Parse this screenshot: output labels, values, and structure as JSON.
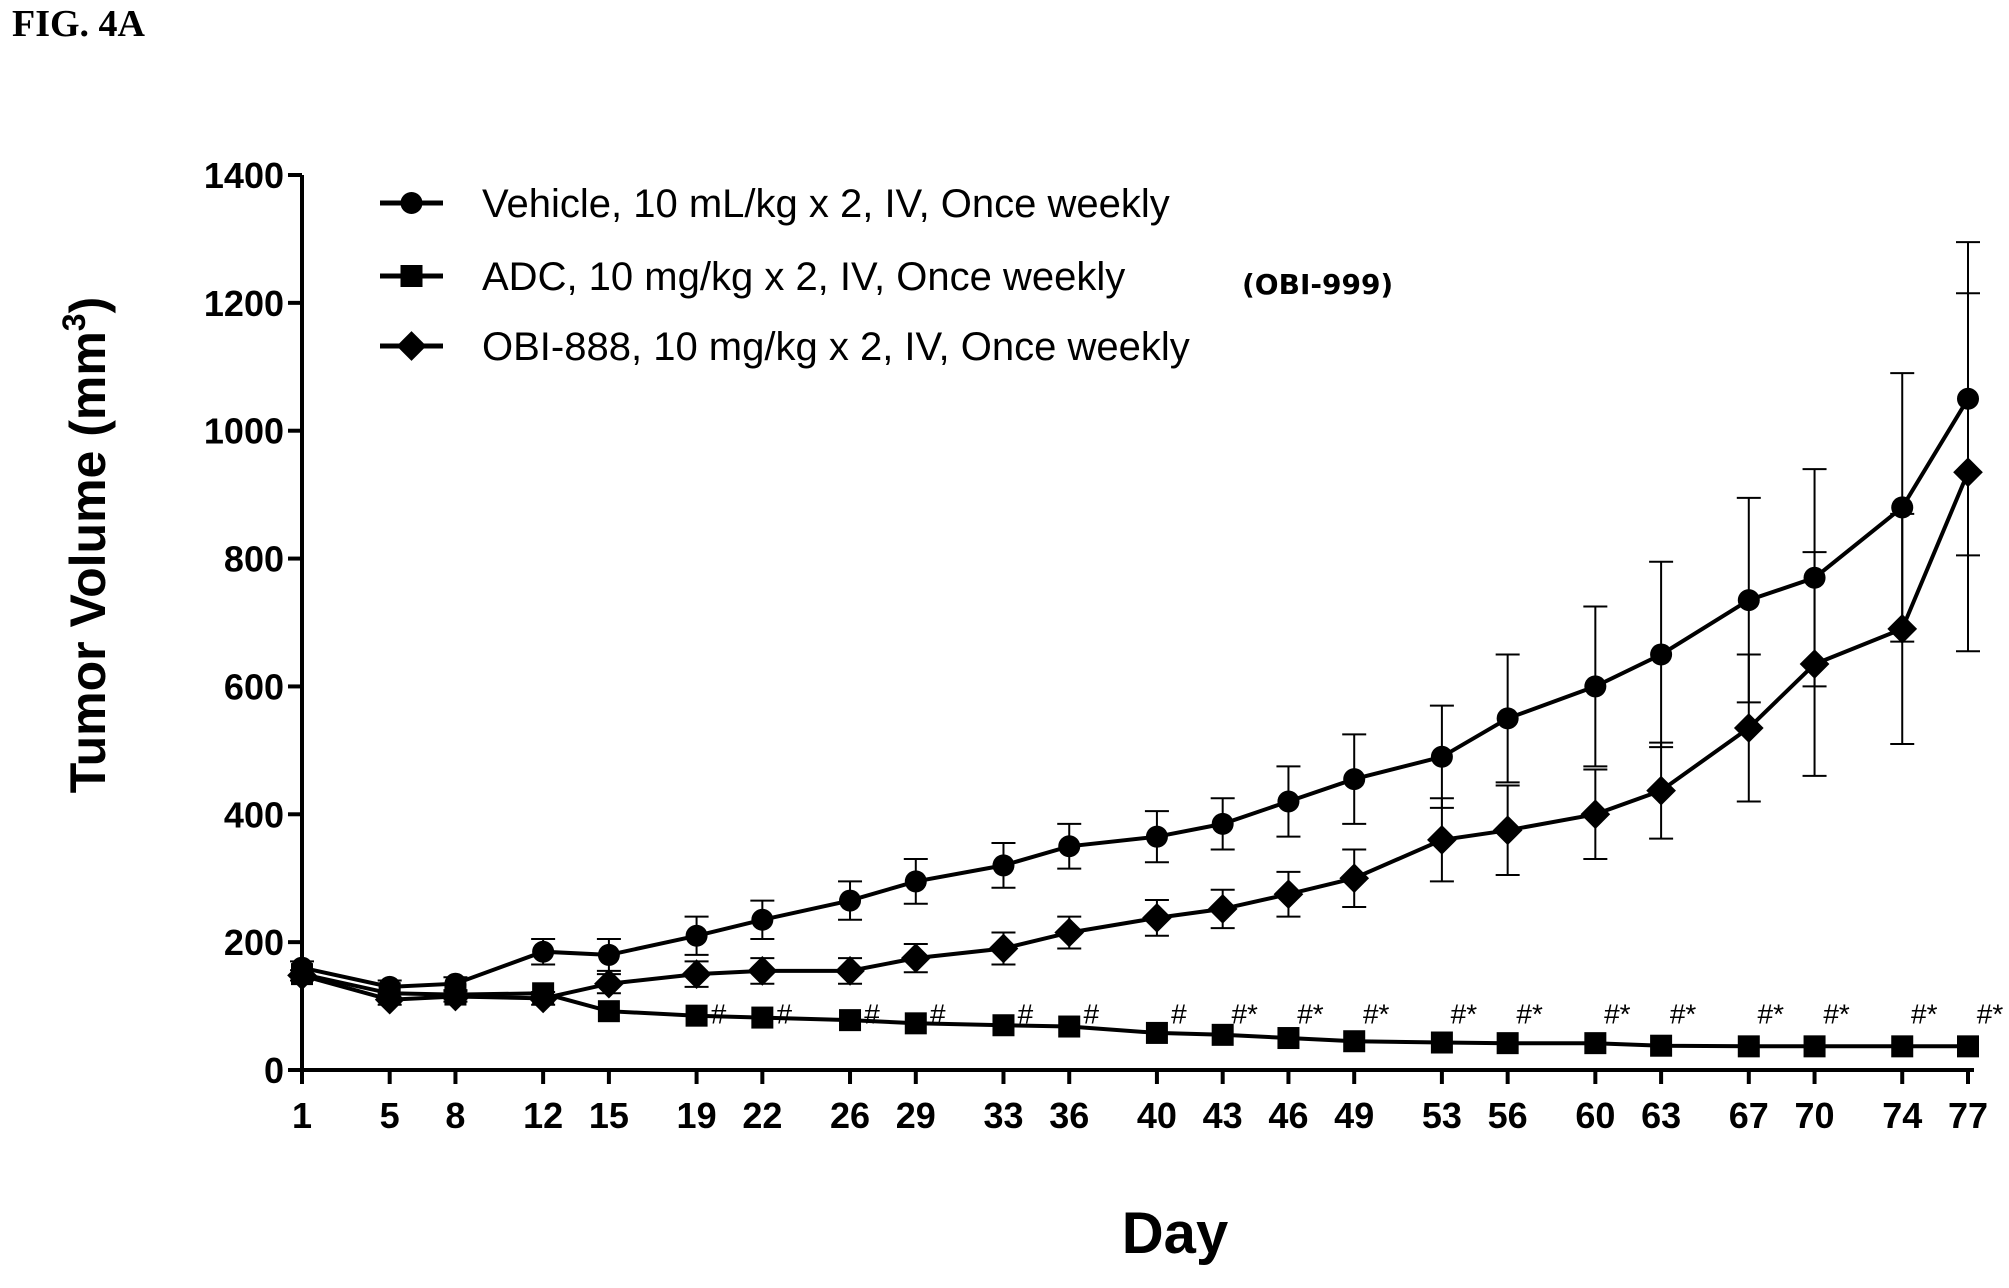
{
  "figure_label": "FIG. 4A",
  "chart_data": {
    "type": "line",
    "xlabel": "Day",
    "ylabel": "Tumor Volume (mm",
    "ylabel_sup": "3",
    "ylabel_close": ")",
    "ylim": [
      0,
      1400
    ],
    "yticks": [
      0,
      200,
      400,
      600,
      800,
      1000,
      1200,
      1400
    ],
    "x": [
      1,
      5,
      8,
      12,
      15,
      19,
      22,
      26,
      29,
      33,
      36,
      40,
      43,
      46,
      49,
      53,
      56,
      60,
      63,
      67,
      70,
      74,
      77
    ],
    "grid": false,
    "legend_position": "top-left",
    "series": [
      {
        "name": "Vehicle, 10 mL/kg x 2, IV, Once weekly",
        "marker": "circle",
        "values": [
          160,
          130,
          135,
          185,
          180,
          210,
          235,
          265,
          295,
          320,
          350,
          365,
          385,
          420,
          455,
          490,
          550,
          600,
          650,
          735,
          770,
          880,
          1050
        ],
        "error": [
          10,
          10,
          10,
          20,
          25,
          30,
          30,
          30,
          35,
          35,
          35,
          40,
          40,
          55,
          70,
          80,
          100,
          125,
          145,
          160,
          170,
          210,
          245
        ]
      },
      {
        "name": "ADC, 10 mg/kg x 2, IV, Once weekly",
        "note": "(OBI-999)",
        "marker": "square",
        "values": [
          150,
          120,
          118,
          120,
          92,
          85,
          82,
          78,
          73,
          70,
          68,
          58,
          55,
          50,
          45,
          43,
          42,
          42,
          38,
          37,
          37,
          37,
          37
        ],
        "error": [
          5,
          5,
          5,
          5,
          5,
          5,
          5,
          5,
          5,
          5,
          5,
          5,
          5,
          5,
          5,
          5,
          5,
          5,
          5,
          5,
          5,
          5,
          5
        ]
      },
      {
        "name": "OBI-888, 10 mg/kg x 2, IV, Once weekly",
        "marker": "diamond",
        "values": [
          148,
          110,
          115,
          112,
          135,
          150,
          155,
          155,
          175,
          190,
          215,
          238,
          252,
          275,
          300,
          360,
          375,
          400,
          437,
          535,
          635,
          690,
          935
        ],
        "error": [
          8,
          8,
          8,
          10,
          15,
          20,
          20,
          20,
          22,
          25,
          25,
          28,
          30,
          35,
          45,
          65,
          70,
          70,
          75,
          115,
          175,
          180,
          280
        ]
      }
    ],
    "annotations": [
      {
        "x": 19,
        "text": "#"
      },
      {
        "x": 22,
        "text": "#"
      },
      {
        "x": 26,
        "text": "#"
      },
      {
        "x": 29,
        "text": "#"
      },
      {
        "x": 33,
        "text": "#"
      },
      {
        "x": 36,
        "text": "#"
      },
      {
        "x": 40,
        "text": "#"
      },
      {
        "x": 43,
        "text": "#*"
      },
      {
        "x": 46,
        "text": "#*"
      },
      {
        "x": 49,
        "text": "#*"
      },
      {
        "x": 53,
        "text": "#*"
      },
      {
        "x": 56,
        "text": "#*"
      },
      {
        "x": 60,
        "text": "#*"
      },
      {
        "x": 63,
        "text": "#*"
      },
      {
        "x": 67,
        "text": "#*"
      },
      {
        "x": 70,
        "text": "#*"
      },
      {
        "x": 74,
        "text": "#*"
      },
      {
        "x": 77,
        "text": "#*"
      }
    ]
  }
}
